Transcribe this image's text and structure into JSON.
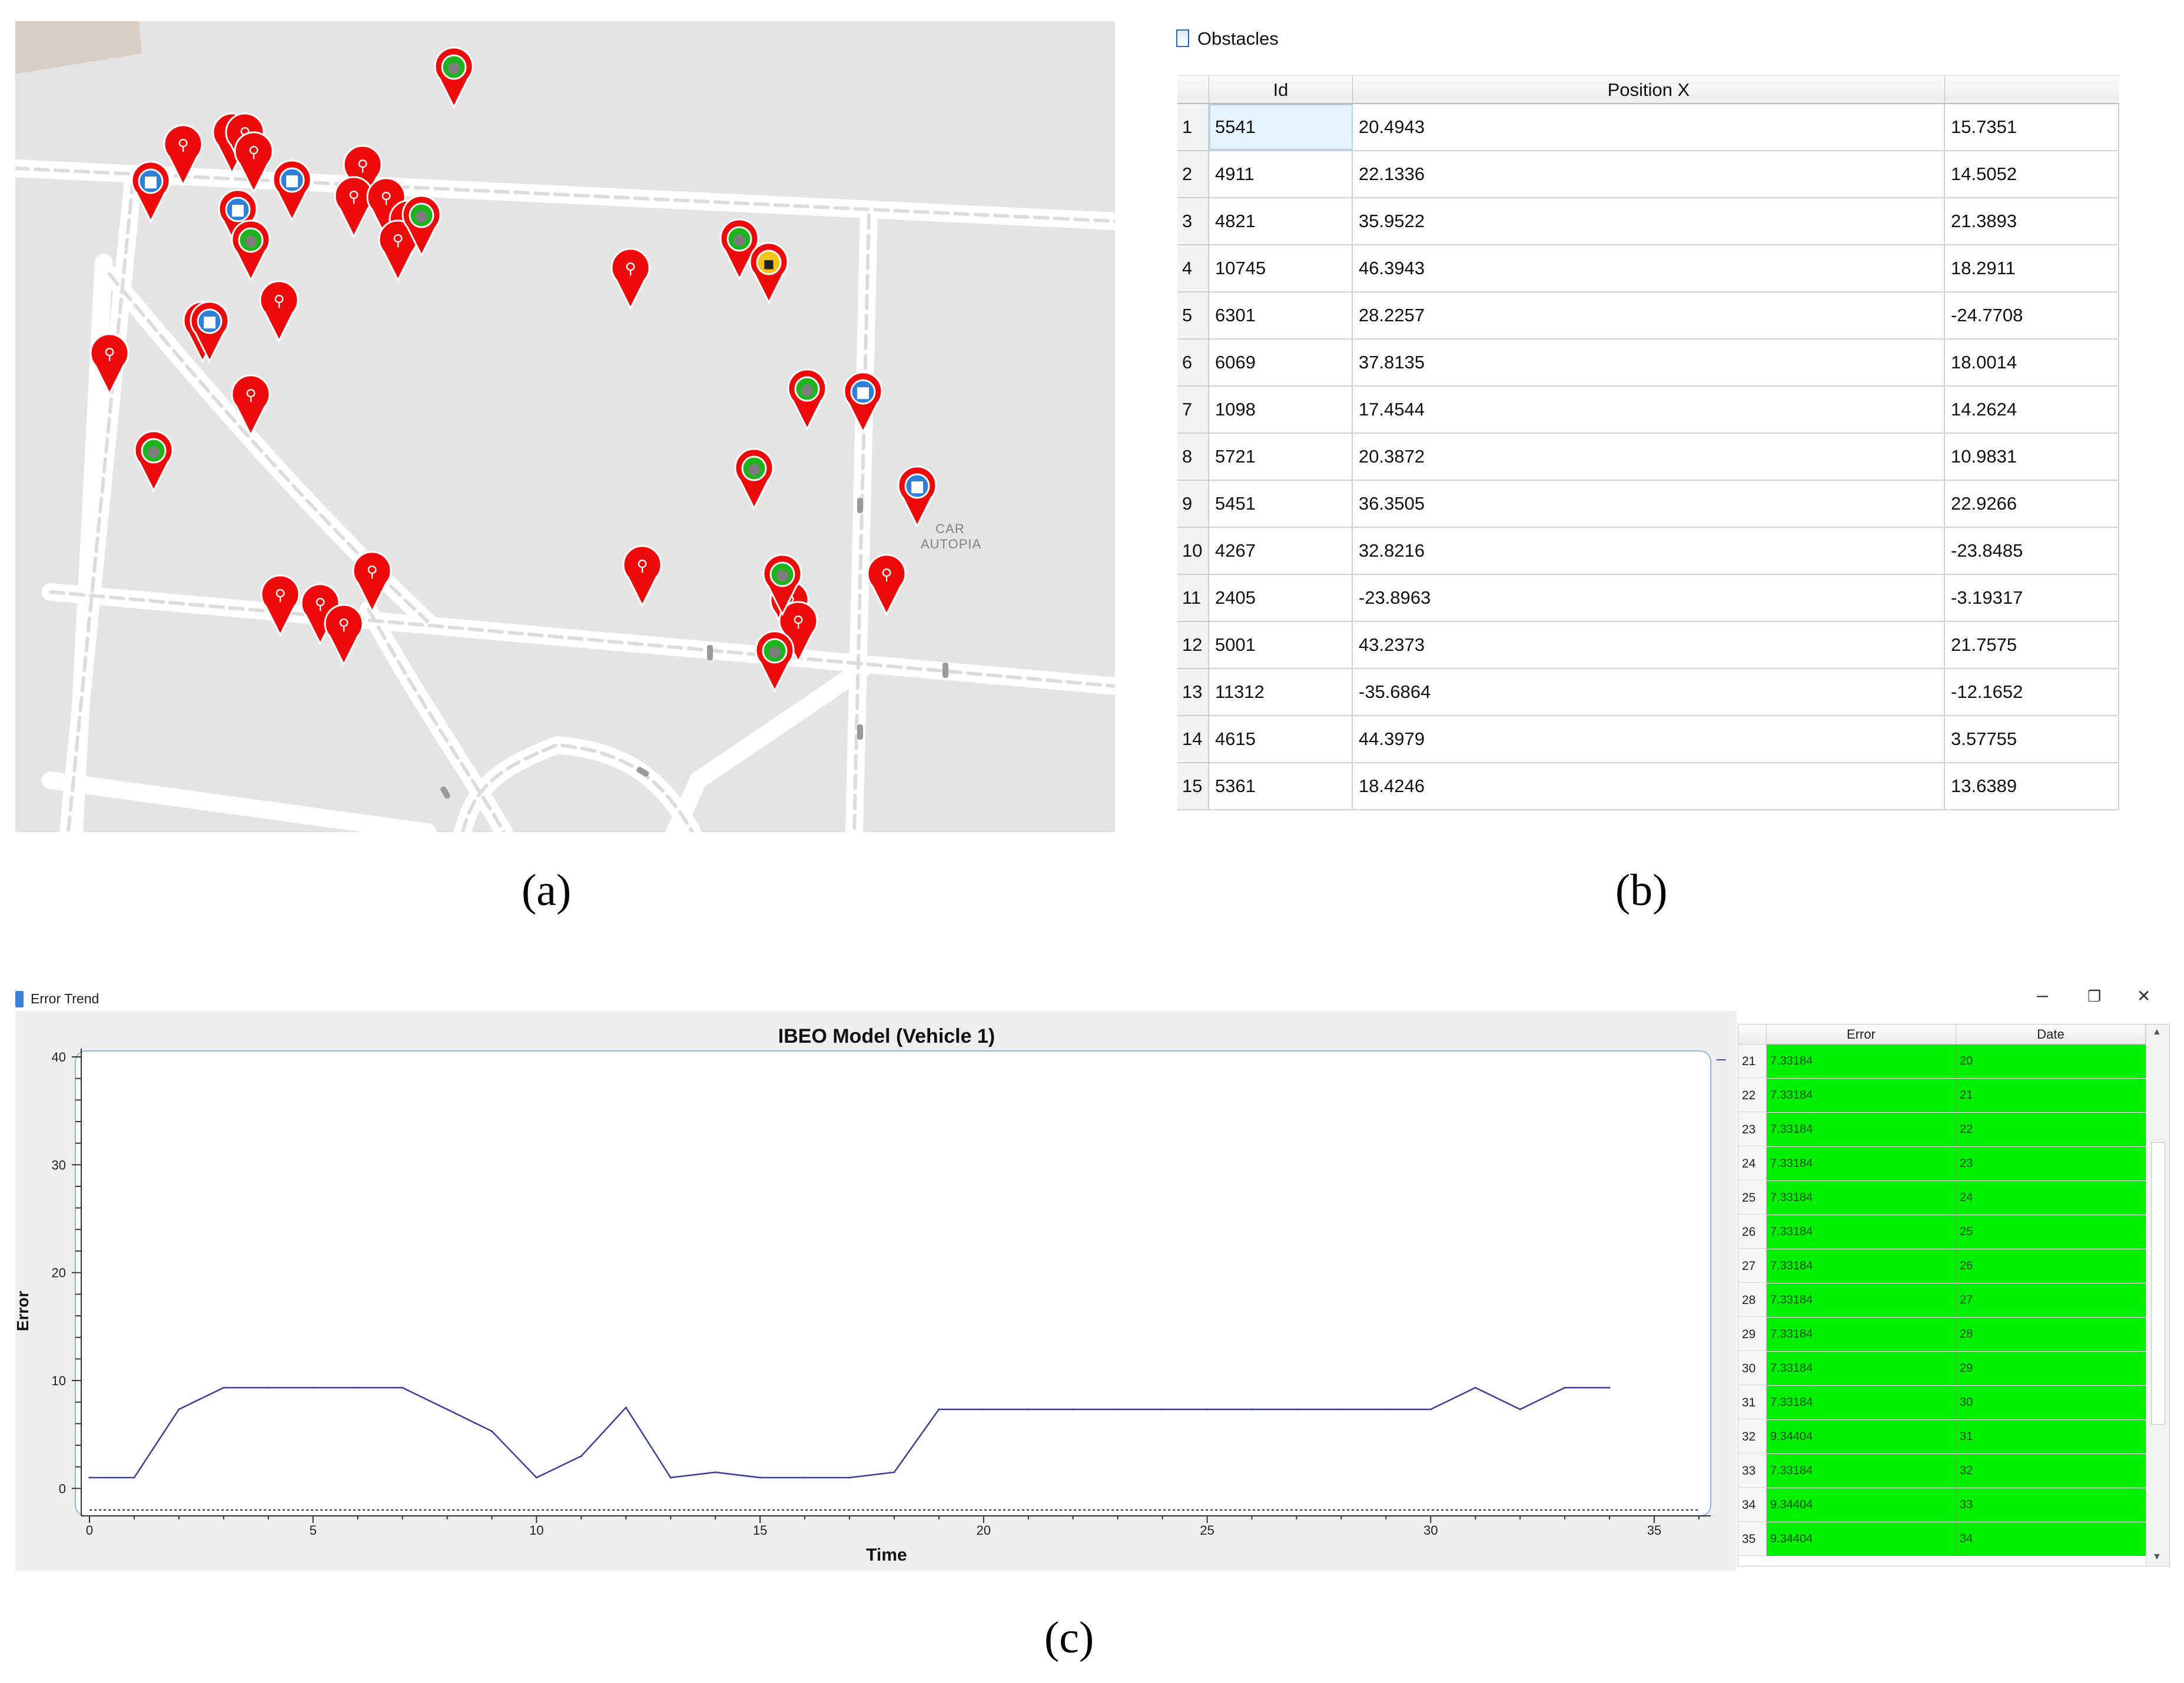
{
  "captions": {
    "a": "(a)",
    "b": "(b)",
    "c": "(c)"
  },
  "map": {
    "area_label": [
      "CAR",
      "AUTOPIA"
    ],
    "markers": [
      {
        "type": "pedestrian"
      },
      {
        "type": "pedestrian"
      },
      {
        "type": "pedestrian"
      },
      {
        "type": "pedestrian"
      },
      {
        "type": "pedestrian"
      },
      {
        "type": "vehicle"
      },
      {
        "type": "vehicle"
      },
      {
        "type": "vehicle"
      },
      {
        "type": "vehicle"
      },
      {
        "type": "vehicle"
      },
      {
        "type": "unknown"
      },
      {
        "type": "unknown"
      },
      {
        "type": "unknown"
      },
      {
        "type": "truck"
      }
    ]
  },
  "obstacles": {
    "title": "Obstacles",
    "columns": [
      "Id",
      "Position X",
      ""
    ],
    "rows": [
      {
        "n": "1",
        "id": "5541",
        "x": "20.4943",
        "y": "15.7351"
      },
      {
        "n": "2",
        "id": "4911",
        "x": "22.1336",
        "y": "14.5052"
      },
      {
        "n": "3",
        "id": "4821",
        "x": "35.9522",
        "y": "21.3893"
      },
      {
        "n": "4",
        "id": "10745",
        "x": "46.3943",
        "y": "18.2911"
      },
      {
        "n": "5",
        "id": "6301",
        "x": "28.2257",
        "y": "-24.7708"
      },
      {
        "n": "6",
        "id": "6069",
        "x": "37.8135",
        "y": "18.0014"
      },
      {
        "n": "7",
        "id": "1098",
        "x": "17.4544",
        "y": "14.2624"
      },
      {
        "n": "8",
        "id": "5721",
        "x": "20.3872",
        "y": "10.9831"
      },
      {
        "n": "9",
        "id": "5451",
        "x": "36.3505",
        "y": "22.9266"
      },
      {
        "n": "10",
        "id": "4267",
        "x": "32.8216",
        "y": "-23.8485"
      },
      {
        "n": "11",
        "id": "2405",
        "x": "-23.8963",
        "y": "-3.19317"
      },
      {
        "n": "12",
        "id": "5001",
        "x": "43.2373",
        "y": "21.7575"
      },
      {
        "n": "13",
        "id": "11312",
        "x": "-35.6864",
        "y": "-12.1652"
      },
      {
        "n": "14",
        "id": "4615",
        "x": "44.3979",
        "y": "3.57755"
      },
      {
        "n": "15",
        "id": "5361",
        "x": "18.4246",
        "y": "13.6389"
      }
    ]
  },
  "error_window": {
    "title": "Error Trend",
    "controls": {
      "minimize": "–",
      "restore": "❐",
      "close": "✕"
    },
    "table": {
      "columns": [
        "Error",
        "Date"
      ],
      "rows": [
        {
          "n": "21",
          "error": "7.33184",
          "date": "20"
        },
        {
          "n": "22",
          "error": "7.33184",
          "date": "21"
        },
        {
          "n": "23",
          "error": "7.33184",
          "date": "22"
        },
        {
          "n": "24",
          "error": "7.33184",
          "date": "23"
        },
        {
          "n": "25",
          "error": "7.33184",
          "date": "24"
        },
        {
          "n": "26",
          "error": "7.33184",
          "date": "25"
        },
        {
          "n": "27",
          "error": "7.33184",
          "date": "26"
        },
        {
          "n": "28",
          "error": "7.33184",
          "date": "27"
        },
        {
          "n": "29",
          "error": "7.33184",
          "date": "28"
        },
        {
          "n": "30",
          "error": "7.33184",
          "date": "29"
        },
        {
          "n": "31",
          "error": "7.33184",
          "date": "30"
        },
        {
          "n": "32",
          "error": "9.34404",
          "date": "31"
        },
        {
          "n": "33",
          "error": "7.33184",
          "date": "32"
        },
        {
          "n": "34",
          "error": "9.34404",
          "date": "33"
        },
        {
          "n": "35",
          "error": "9.34404",
          "date": "34"
        }
      ]
    }
  },
  "chart_data": {
    "type": "line",
    "title": "IBEO Model (Vehicle 1)",
    "xlabel": "Time",
    "ylabel": "Error",
    "xlim": [
      0,
      36
    ],
    "ylim": [
      -2,
      40
    ],
    "xticks": [
      0,
      5,
      10,
      15,
      20,
      25,
      30,
      35
    ],
    "yticks": [
      0,
      10,
      20,
      30,
      40
    ],
    "legend_marker": "–",
    "series": [
      {
        "name": "Error",
        "color": "#3b3b9a",
        "x": [
          0,
          1,
          2,
          3,
          4,
          5,
          6,
          7,
          8,
          9,
          10,
          11,
          12,
          13,
          14,
          15,
          16,
          17,
          18,
          19,
          20,
          21,
          22,
          23,
          24,
          25,
          26,
          27,
          28,
          29,
          30,
          31,
          32,
          33,
          34
        ],
        "y": [
          1.0,
          1.0,
          7.33,
          9.34,
          9.34,
          9.34,
          9.34,
          9.34,
          7.33,
          5.3,
          1.0,
          3.0,
          7.5,
          1.0,
          1.5,
          1.0,
          1.0,
          1.0,
          1.5,
          7.33,
          7.33,
          7.33,
          7.33,
          7.33,
          7.33,
          7.33,
          7.33,
          7.33,
          7.33,
          7.33,
          7.33,
          9.34,
          7.33,
          9.34,
          9.34
        ]
      }
    ]
  }
}
